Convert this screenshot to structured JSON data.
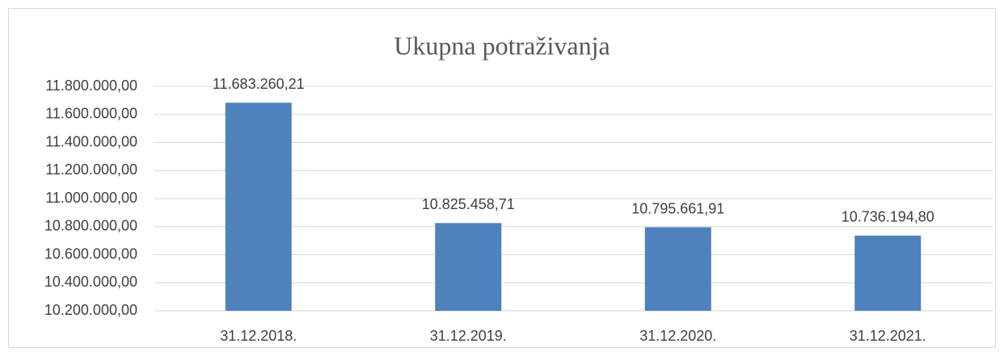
{
  "chart_data": {
    "type": "bar",
    "title": "Ukupna potraživanja",
    "categories": [
      "31.12.2018.",
      "31.12.2019.",
      "31.12.2020.",
      "31.12.2021."
    ],
    "values": [
      11683260.21,
      10825458.71,
      10795661.91,
      10736194.8
    ],
    "value_labels": [
      "11.683.260,21",
      "10.825.458,71",
      "10.795.661,91",
      "10.736.194,80"
    ],
    "color": "#4f81bd",
    "ylim": [
      10200000,
      11800000
    ],
    "yticks": [
      {
        "value": 10200000,
        "label": "10.200.000,00"
      },
      {
        "value": 10400000,
        "label": "10.400.000,00"
      },
      {
        "value": 10600000,
        "label": "10.600.000,00"
      },
      {
        "value": 10800000,
        "label": "10.800.000,00"
      },
      {
        "value": 11000000,
        "label": "11.000.000,00"
      },
      {
        "value": 11200000,
        "label": "11.200.000,00"
      },
      {
        "value": 11400000,
        "label": "11.400.000,00"
      },
      {
        "value": 11600000,
        "label": "11.600.000,00"
      },
      {
        "value": 11800000,
        "label": "11.800.000,00"
      }
    ],
    "grid": true
  }
}
